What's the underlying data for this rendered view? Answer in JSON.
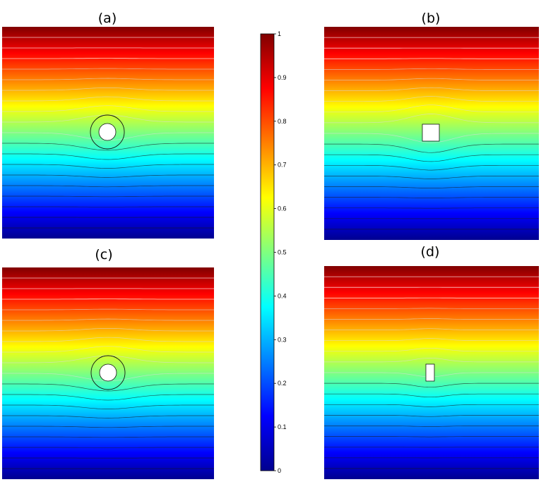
{
  "chart_data": {
    "type": "heatmap",
    "colormap": "jet",
    "colorbar": {
      "ticks": [
        "0",
        "0.1",
        "0.2",
        "0.3",
        "0.4",
        "0.5",
        "0.6",
        "0.7",
        "0.8",
        "0.9",
        "1"
      ],
      "range": [
        0,
        1
      ]
    },
    "panels": [
      {
        "label": "(a)",
        "obstacle": "circle with surrounding ring",
        "field": "vertical gradient, 0 at bottom to 1 at top"
      },
      {
        "label": "(b)",
        "obstacle": "square",
        "field": "vertical gradient, 0 at bottom to 1 at top"
      },
      {
        "label": "(c)",
        "obstacle": "circle with surrounding ring",
        "field": "vertical gradient, 0 at bottom to 1 at top"
      },
      {
        "label": "(d)",
        "obstacle": "narrow rectangle",
        "field": "vertical gradient, 0 at bottom to 1 at top"
      }
    ],
    "contour_levels": [
      0.05,
      0.1,
      0.15,
      0.2,
      0.25,
      0.3,
      0.35,
      0.4,
      0.45,
      0.5,
      0.55,
      0.6,
      0.65,
      0.7,
      0.75,
      0.8,
      0.85,
      0.9,
      0.95
    ]
  }
}
